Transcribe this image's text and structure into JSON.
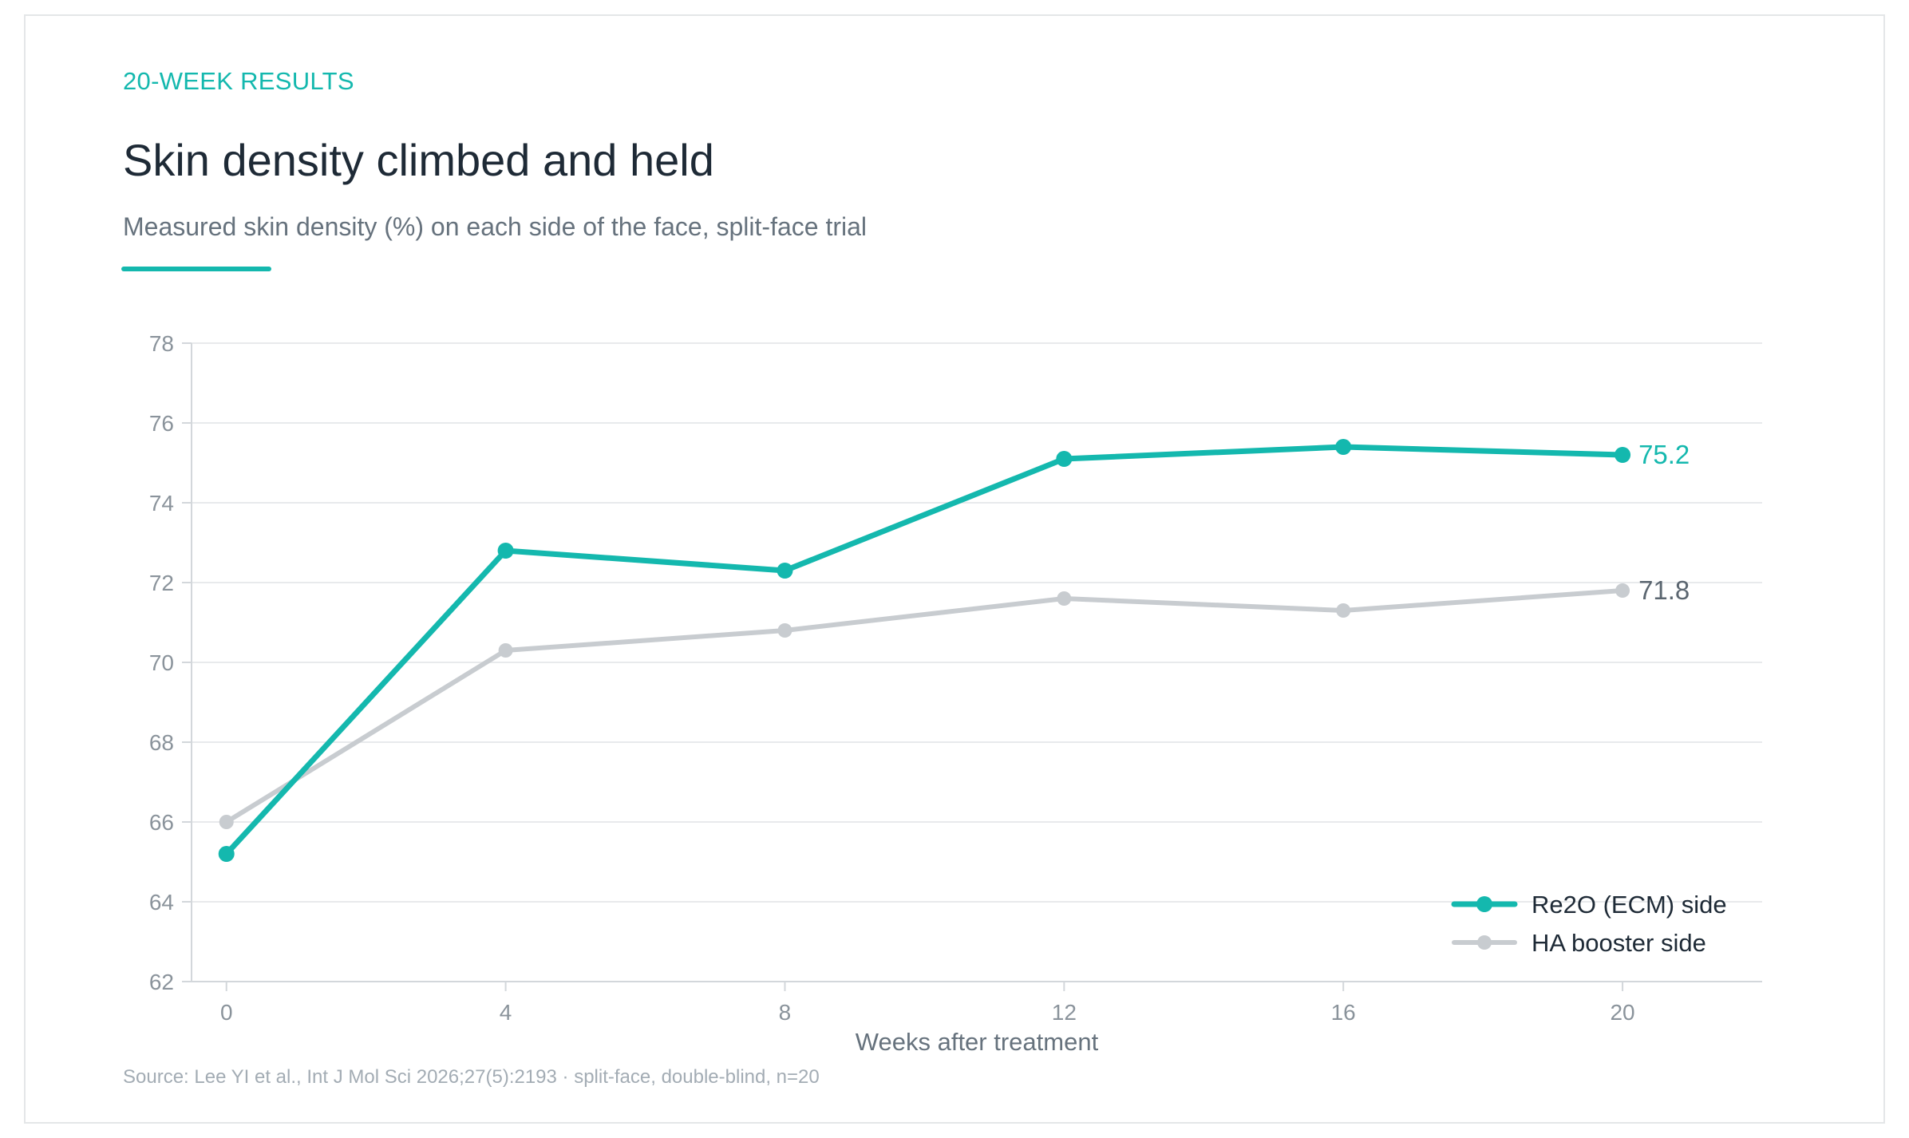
{
  "header": {
    "eyebrow": "20-WEEK RESULTS",
    "title": "Skin density climbed and held",
    "subtitle": "Measured skin density (%) on each side of the face, split-face trial"
  },
  "footer": {
    "source": "Source: Lee YI et al., Int J Mol Sci 2026;27(5):2193 · split-face, double-blind, n=20"
  },
  "colors": {
    "accent": "#14b8ae",
    "secondary": "#c8ccd0",
    "grid": "#e8eaec",
    "axis_text": "#8a939b",
    "end_label_secondary": "#5b6670"
  },
  "chart_data": {
    "type": "line",
    "title": "Skin density climbed and held",
    "xlabel": "Weeks after treatment",
    "ylabel": "",
    "x": [
      0,
      4,
      8,
      12,
      16,
      20
    ],
    "x_ticks": [
      "0",
      "4",
      "8",
      "12",
      "16",
      "20"
    ],
    "y_ticks": [
      "62",
      "64",
      "66",
      "68",
      "70",
      "72",
      "74",
      "76",
      "78"
    ],
    "xlim": [
      -0.5,
      22
    ],
    "ylim": [
      62,
      78
    ],
    "grid": true,
    "legend_position": "bottom-right",
    "series": [
      {
        "name": "Re2O (ECM) side",
        "values": [
          65.2,
          72.8,
          72.3,
          75.1,
          75.4,
          75.2
        ],
        "color": "#14b8ae",
        "end_label": "75.2"
      },
      {
        "name": "HA booster side",
        "values": [
          66.0,
          70.3,
          70.8,
          71.6,
          71.3,
          71.8
        ],
        "color": "#c8ccd0",
        "end_label": "71.8"
      }
    ]
  }
}
